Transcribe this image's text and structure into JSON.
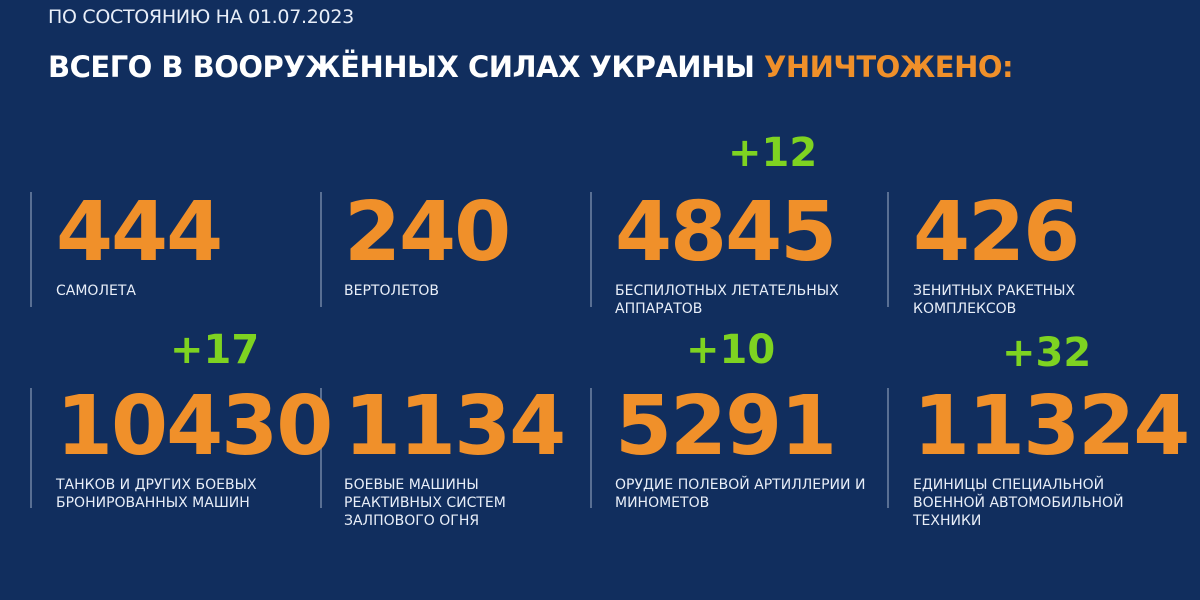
{
  "header": {
    "subtitle": "ПО СОСТОЯНИЮ НА 01.07.2023",
    "title": "ВСЕГО В ВООРУЖЁННЫХ СИЛАХ УКРАИНЫ",
    "title_accent": "УНИЧТОЖЕНО:"
  },
  "colors": {
    "background": "#112e5e",
    "number": "#f0902a",
    "delta": "#7ed321",
    "accent": "#f0902a"
  },
  "stats": [
    {
      "value": "444",
      "label": "САМОЛЕТА",
      "delta": ""
    },
    {
      "value": "240",
      "label": "ВЕРТОЛЕТОВ",
      "delta": ""
    },
    {
      "value": "4845",
      "label": "БЕСПИЛОТНЫХ ЛЕТАТЕЛЬНЫХ АППАРАТОВ",
      "delta": "+12"
    },
    {
      "value": "426",
      "label": "ЗЕНИТНЫХ РАКЕТНЫХ КОМПЛЕКСОВ",
      "delta": ""
    },
    {
      "value": "10430",
      "label": "ТАНКОВ И ДРУГИХ БОЕВЫХ БРОНИРОВАННЫХ МАШИН",
      "delta": "+17"
    },
    {
      "value": "1134",
      "label": "БОЕВЫЕ МАШИНЫ РЕАКТИВНЫХ СИСТЕМ ЗАЛПОВОГО ОГНЯ",
      "delta": ""
    },
    {
      "value": "5291",
      "label": "ОРУДИЕ ПОЛЕВОЙ АРТИЛЛЕРИИ И МИНОМЕТОВ",
      "delta": "+10"
    },
    {
      "value": "11324",
      "label": "ЕДИНИЦЫ СПЕЦИАЛЬНОЙ ВОЕННОЙ АВТОМОБИЛЬНОЙ ТЕХНИКИ",
      "delta": "+32"
    }
  ]
}
